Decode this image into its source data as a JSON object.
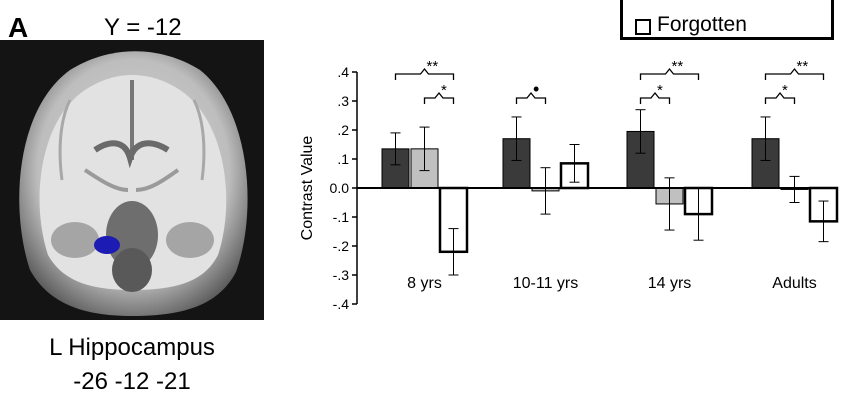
{
  "figure": {
    "panel_letter": "A",
    "slice_label": "Y = -12",
    "region_name": "L Hippocampus",
    "region_coords": "-26 -12 -21",
    "legend_visible_label": "Forgotten",
    "brain_blob_color": "#1c1cb4"
  },
  "chart_data": {
    "type": "bar",
    "ylabel": "Contrast Value",
    "ylim": [
      -0.4,
      0.4
    ],
    "yticks": [
      -0.4,
      -0.3,
      -0.2,
      -0.1,
      0.0,
      0.1,
      0.2,
      0.3,
      0.4
    ],
    "ytick_labels": [
      "-.4",
      "-.3",
      "-.2",
      "-.1",
      "0.0",
      ".1",
      ".2",
      ".3",
      ".4"
    ],
    "categories": [
      "8 yrs",
      "10-11 yrs",
      "14 yrs",
      "Adults"
    ],
    "series": [
      {
        "color": "#3a3a3a",
        "values": [
          0.135,
          0.17,
          0.195,
          0.17
        ],
        "errors": [
          0.055,
          0.075,
          0.075,
          0.075
        ]
      },
      {
        "color": "#c0c0c0",
        "values": [
          0.135,
          -0.01,
          -0.055,
          -0.005
        ],
        "errors": [
          0.075,
          0.08,
          0.09,
          0.045
        ]
      },
      {
        "name": "Forgotten",
        "color": "#ffffff",
        "values": [
          -0.22,
          0.085,
          -0.09,
          -0.115
        ],
        "errors": [
          0.08,
          0.065,
          0.09,
          0.07
        ]
      }
    ],
    "significance": [
      {
        "group": 0,
        "from": 0,
        "to": 2,
        "label": "**"
      },
      {
        "group": 0,
        "from": 1,
        "to": 2,
        "label": "*"
      },
      {
        "group": 1,
        "from": 0,
        "to": 1,
        "label": "•"
      },
      {
        "group": 2,
        "from": 0,
        "to": 2,
        "label": "**"
      },
      {
        "group": 2,
        "from": 0,
        "to": 1,
        "label": "*"
      },
      {
        "group": 3,
        "from": 0,
        "to": 2,
        "label": "**"
      },
      {
        "group": 3,
        "from": 0,
        "to": 1,
        "label": "*"
      }
    ]
  }
}
